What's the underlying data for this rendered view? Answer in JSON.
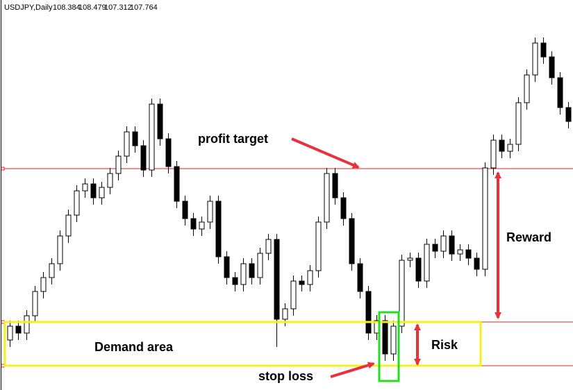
{
  "chart_data": {
    "type": "candlestick",
    "symbol": "USDJPY,Daily",
    "header_ohlc": [
      108.384,
      108.479,
      107.312,
      107.764
    ],
    "ylim": [
      103.5,
      109.12
    ],
    "open": [
      104.22,
      104.42,
      104.32,
      104.57,
      104.92,
      105.12,
      105.32,
      105.72,
      106.02,
      106.37,
      106.47,
      106.27,
      106.42,
      106.62,
      106.87,
      107.22,
      107.02,
      106.67,
      107.62,
      107.12,
      106.72,
      106.22,
      105.97,
      105.82,
      105.92,
      106.22,
      105.42,
      105.12,
      105.02,
      105.32,
      105.12,
      105.47,
      105.67,
      104.52,
      104.67,
      105.07,
      105.02,
      105.22,
      105.92,
      106.62,
      106.27,
      105.97,
      105.32,
      104.92,
      104.32,
      104.5,
      104.02,
      104.42,
      105.37,
      105.4,
      105.07,
      105.6,
      105.5,
      105.72,
      105.46,
      105.52,
      105.4,
      105.24,
      106.7,
      107.1,
      106.94,
      107.04,
      107.64,
      108.04,
      108.5,
      108.3,
      108.0,
      107.57
    ],
    "high": [
      104.5,
      104.5,
      104.65,
      105.0,
      105.2,
      105.4,
      105.8,
      106.1,
      106.45,
      106.55,
      106.55,
      106.5,
      106.7,
      106.95,
      107.3,
      107.3,
      107.1,
      107.7,
      107.7,
      107.2,
      106.8,
      106.3,
      106.05,
      106.0,
      106.3,
      106.3,
      105.5,
      105.2,
      105.4,
      105.4,
      105.55,
      105.75,
      105.75,
      104.75,
      105.15,
      105.15,
      105.3,
      106.0,
      106.7,
      106.7,
      106.35,
      106.05,
      105.4,
      105.0,
      104.58,
      104.58,
      104.5,
      105.45,
      105.48,
      105.48,
      105.68,
      105.68,
      105.8,
      105.8,
      105.6,
      105.6,
      105.48,
      106.78,
      107.18,
      107.18,
      107.12,
      107.72,
      108.12,
      108.58,
      108.58,
      108.38,
      108.08,
      107.65
    ],
    "low": [
      104.12,
      104.22,
      104.22,
      104.47,
      104.82,
      105.02,
      105.22,
      105.62,
      105.92,
      106.27,
      106.17,
      106.17,
      106.32,
      106.52,
      106.77,
      106.92,
      106.57,
      106.57,
      107.02,
      106.62,
      106.12,
      105.87,
      105.72,
      105.72,
      105.82,
      105.32,
      105.02,
      104.92,
      104.92,
      105.02,
      105.02,
      105.37,
      104.12,
      104.42,
      104.57,
      104.92,
      104.92,
      105.12,
      105.82,
      106.17,
      105.87,
      105.22,
      104.82,
      104.22,
      104.22,
      103.92,
      103.92,
      104.32,
      105.27,
      104.97,
      104.97,
      105.4,
      105.4,
      105.36,
      105.36,
      105.3,
      105.14,
      105.14,
      106.6,
      106.84,
      106.84,
      106.94,
      107.54,
      107.94,
      108.2,
      107.9,
      107.47,
      107.27
    ],
    "close": [
      104.42,
      104.32,
      104.57,
      104.92,
      105.12,
      105.32,
      105.72,
      106.02,
      106.37,
      106.47,
      106.27,
      106.42,
      106.62,
      106.87,
      107.22,
      107.02,
      106.67,
      107.62,
      107.12,
      106.72,
      106.22,
      105.97,
      105.82,
      105.92,
      106.22,
      105.42,
      105.12,
      105.02,
      105.32,
      105.12,
      105.47,
      105.67,
      104.52,
      104.67,
      105.07,
      105.02,
      105.22,
      105.92,
      106.62,
      106.27,
      105.97,
      105.32,
      104.92,
      104.32,
      104.5,
      104.02,
      104.42,
      105.37,
      105.4,
      105.07,
      105.6,
      105.5,
      105.72,
      105.46,
      105.52,
      105.4,
      105.24,
      106.7,
      107.1,
      106.94,
      107.04,
      107.64,
      108.04,
      108.5,
      108.3,
      108.0,
      107.57,
      107.37
    ],
    "levels": {
      "profit_target": 106.69,
      "demand_top": 104.48,
      "demand_bottom": 103.85
    },
    "annotations": {
      "profit_target": "profit target",
      "reward": "Reward",
      "risk": "Risk",
      "demand": "Demand area",
      "stop_loss": "stop loss"
    },
    "level_color": "#e02020",
    "bull_color": "#ffffff",
    "bear_color": "#000000"
  }
}
